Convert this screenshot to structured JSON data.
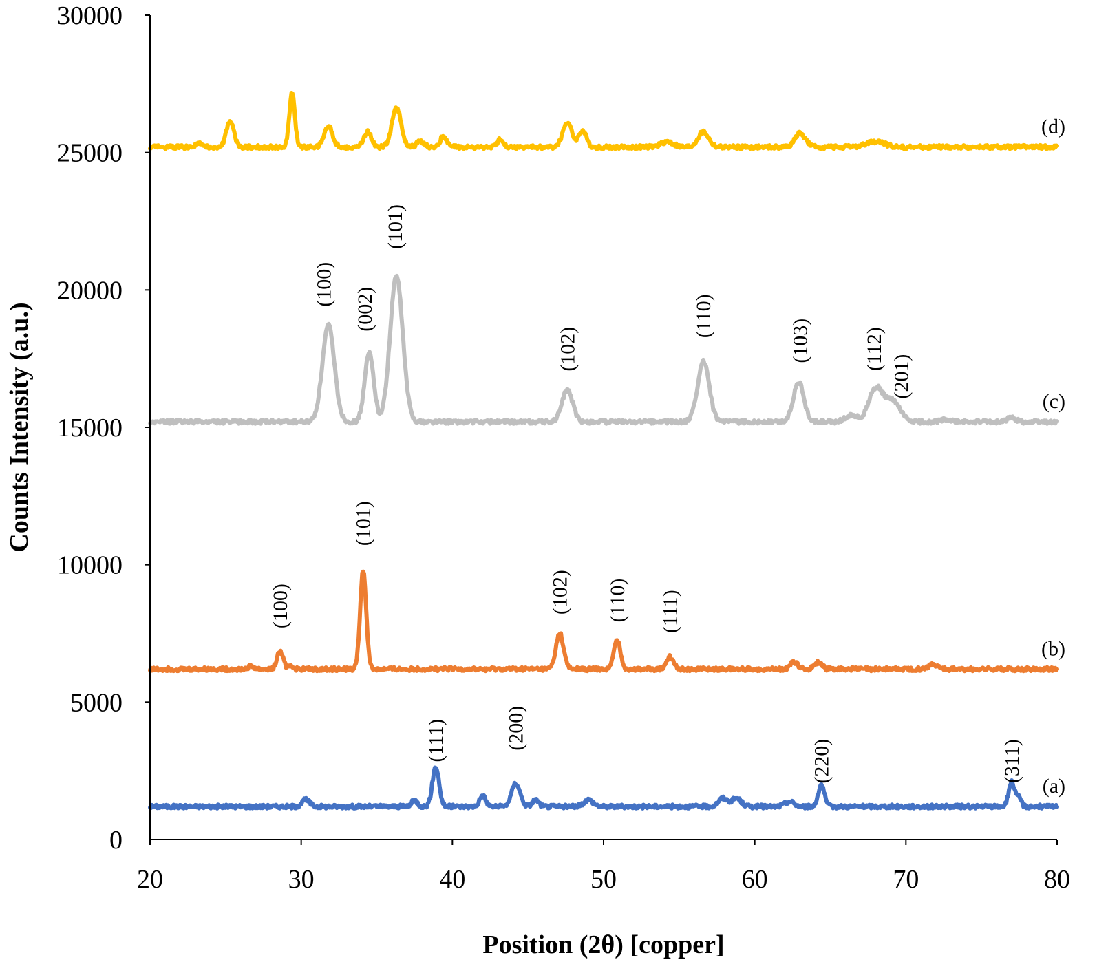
{
  "chart_data": {
    "type": "line",
    "title": "",
    "xlabel": "Position (2θ) [copper]",
    "ylabel": "Counts Intensity (a.u.)",
    "xlim": [
      20,
      80
    ],
    "ylim": [
      0,
      30000
    ],
    "xticks": [
      "20",
      "30",
      "40",
      "50",
      "60",
      "70",
      "80"
    ],
    "yticks": [
      "0",
      "5000",
      "10000",
      "15000",
      "20000",
      "25000",
      "30000"
    ],
    "grid": false,
    "legend": "none",
    "series": [
      {
        "label": "(a)",
        "color": "#4472c4",
        "baseline": 1200,
        "peaks": [
          {
            "x": 38.9,
            "h": 1450,
            "w": 0.22
          },
          {
            "x": 44.2,
            "h": 850,
            "w": 0.28
          },
          {
            "x": 64.4,
            "h": 800,
            "w": 0.2
          },
          {
            "x": 77.0,
            "h": 900,
            "w": 0.2
          },
          {
            "x": 42.0,
            "h": 400,
            "w": 0.2
          },
          {
            "x": 30.3,
            "h": 250,
            "w": 0.25
          },
          {
            "x": 45.5,
            "h": 250,
            "w": 0.2
          },
          {
            "x": 49.0,
            "h": 250,
            "w": 0.3
          },
          {
            "x": 57.9,
            "h": 300,
            "w": 0.3
          },
          {
            "x": 58.8,
            "h": 300,
            "w": 0.3
          },
          {
            "x": 37.5,
            "h": 220,
            "w": 0.2
          },
          {
            "x": 62.3,
            "h": 180,
            "w": 0.3
          },
          {
            "x": 77.5,
            "h": 300,
            "w": 0.15
          }
        ],
        "peak_labels": [
          {
            "text": "(111)",
            "x": 38.9,
            "y": 3600
          },
          {
            "text": "(200)",
            "x": 44.2,
            "y": 4050
          },
          {
            "text": "(220)",
            "x": 64.4,
            "y": 2850
          },
          {
            "text": "(311)",
            "x": 77.0,
            "y": 2850
          }
        ]
      },
      {
        "label": "(b)",
        "color": "#ed7d31",
        "baseline": 6200,
        "peaks": [
          {
            "x": 34.1,
            "h": 3600,
            "w": 0.2
          },
          {
            "x": 47.1,
            "h": 1300,
            "w": 0.25
          },
          {
            "x": 50.9,
            "h": 1050,
            "w": 0.22
          },
          {
            "x": 28.6,
            "h": 650,
            "w": 0.2
          },
          {
            "x": 54.4,
            "h": 450,
            "w": 0.25
          },
          {
            "x": 62.6,
            "h": 250,
            "w": 0.25
          },
          {
            "x": 64.2,
            "h": 250,
            "w": 0.25
          },
          {
            "x": 71.8,
            "h": 180,
            "w": 0.3
          },
          {
            "x": 29.3,
            "h": 150,
            "w": 0.15
          },
          {
            "x": 26.7,
            "h": 100,
            "w": 0.2
          }
        ],
        "peak_labels": [
          {
            "text": "(100)",
            "x": 28.6,
            "y": 8500
          },
          {
            "text": "(101)",
            "x": 34.1,
            "y": 11500
          },
          {
            "text": "(102)",
            "x": 47.1,
            "y": 9000
          },
          {
            "text": "(110)",
            "x": 50.9,
            "y": 8700
          },
          {
            "text": "(111)",
            "x": 54.4,
            "y": 8300
          }
        ]
      },
      {
        "label": "(c)",
        "color": "#bfbfbf",
        "baseline": 15200,
        "peaks": [
          {
            "x": 31.8,
            "h": 3500,
            "w": 0.4
          },
          {
            "x": 34.5,
            "h": 2500,
            "w": 0.3
          },
          {
            "x": 36.3,
            "h": 5300,
            "w": 0.42
          },
          {
            "x": 47.6,
            "h": 1150,
            "w": 0.35
          },
          {
            "x": 56.6,
            "h": 2200,
            "w": 0.38
          },
          {
            "x": 62.9,
            "h": 1450,
            "w": 0.35
          },
          {
            "x": 68.0,
            "h": 1200,
            "w": 0.45
          },
          {
            "x": 69.1,
            "h": 750,
            "w": 0.5
          },
          {
            "x": 66.4,
            "h": 250,
            "w": 0.4
          },
          {
            "x": 77.0,
            "h": 150,
            "w": 0.3
          },
          {
            "x": 72.6,
            "h": 80,
            "w": 0.3
          }
        ],
        "peak_labels": [
          {
            "text": "(100)",
            "x": 31.5,
            "y": 20200
          },
          {
            "text": "(002)",
            "x": 34.2,
            "y": 19300
          },
          {
            "text": "(101)",
            "x": 36.2,
            "y": 22300
          },
          {
            "text": "(102)",
            "x": 47.6,
            "y": 17850
          },
          {
            "text": "(110)",
            "x": 56.6,
            "y": 19050
          },
          {
            "text": "(103)",
            "x": 63.0,
            "y": 18150
          },
          {
            "text": "(112)",
            "x": 67.9,
            "y": 17850
          },
          {
            "text": "(201)",
            "x": 69.7,
            "y": 16850
          }
        ]
      },
      {
        "label": "(d)",
        "color": "#ffc000",
        "baseline": 25200,
        "peaks": [
          {
            "x": 29.4,
            "h": 1950,
            "w": 0.18
          },
          {
            "x": 25.3,
            "h": 950,
            "w": 0.25
          },
          {
            "x": 31.8,
            "h": 750,
            "w": 0.28
          },
          {
            "x": 34.4,
            "h": 550,
            "w": 0.25
          },
          {
            "x": 36.3,
            "h": 1450,
            "w": 0.3
          },
          {
            "x": 47.6,
            "h": 900,
            "w": 0.3
          },
          {
            "x": 48.6,
            "h": 600,
            "w": 0.25
          },
          {
            "x": 56.6,
            "h": 550,
            "w": 0.35
          },
          {
            "x": 63.0,
            "h": 500,
            "w": 0.35
          },
          {
            "x": 39.4,
            "h": 400,
            "w": 0.2
          },
          {
            "x": 43.2,
            "h": 300,
            "w": 0.2
          },
          {
            "x": 37.9,
            "h": 200,
            "w": 0.25
          },
          {
            "x": 54.2,
            "h": 200,
            "w": 0.4
          },
          {
            "x": 68.0,
            "h": 200,
            "w": 0.6
          },
          {
            "x": 23.2,
            "h": 120,
            "w": 0.2
          }
        ],
        "peak_labels": []
      }
    ]
  }
}
